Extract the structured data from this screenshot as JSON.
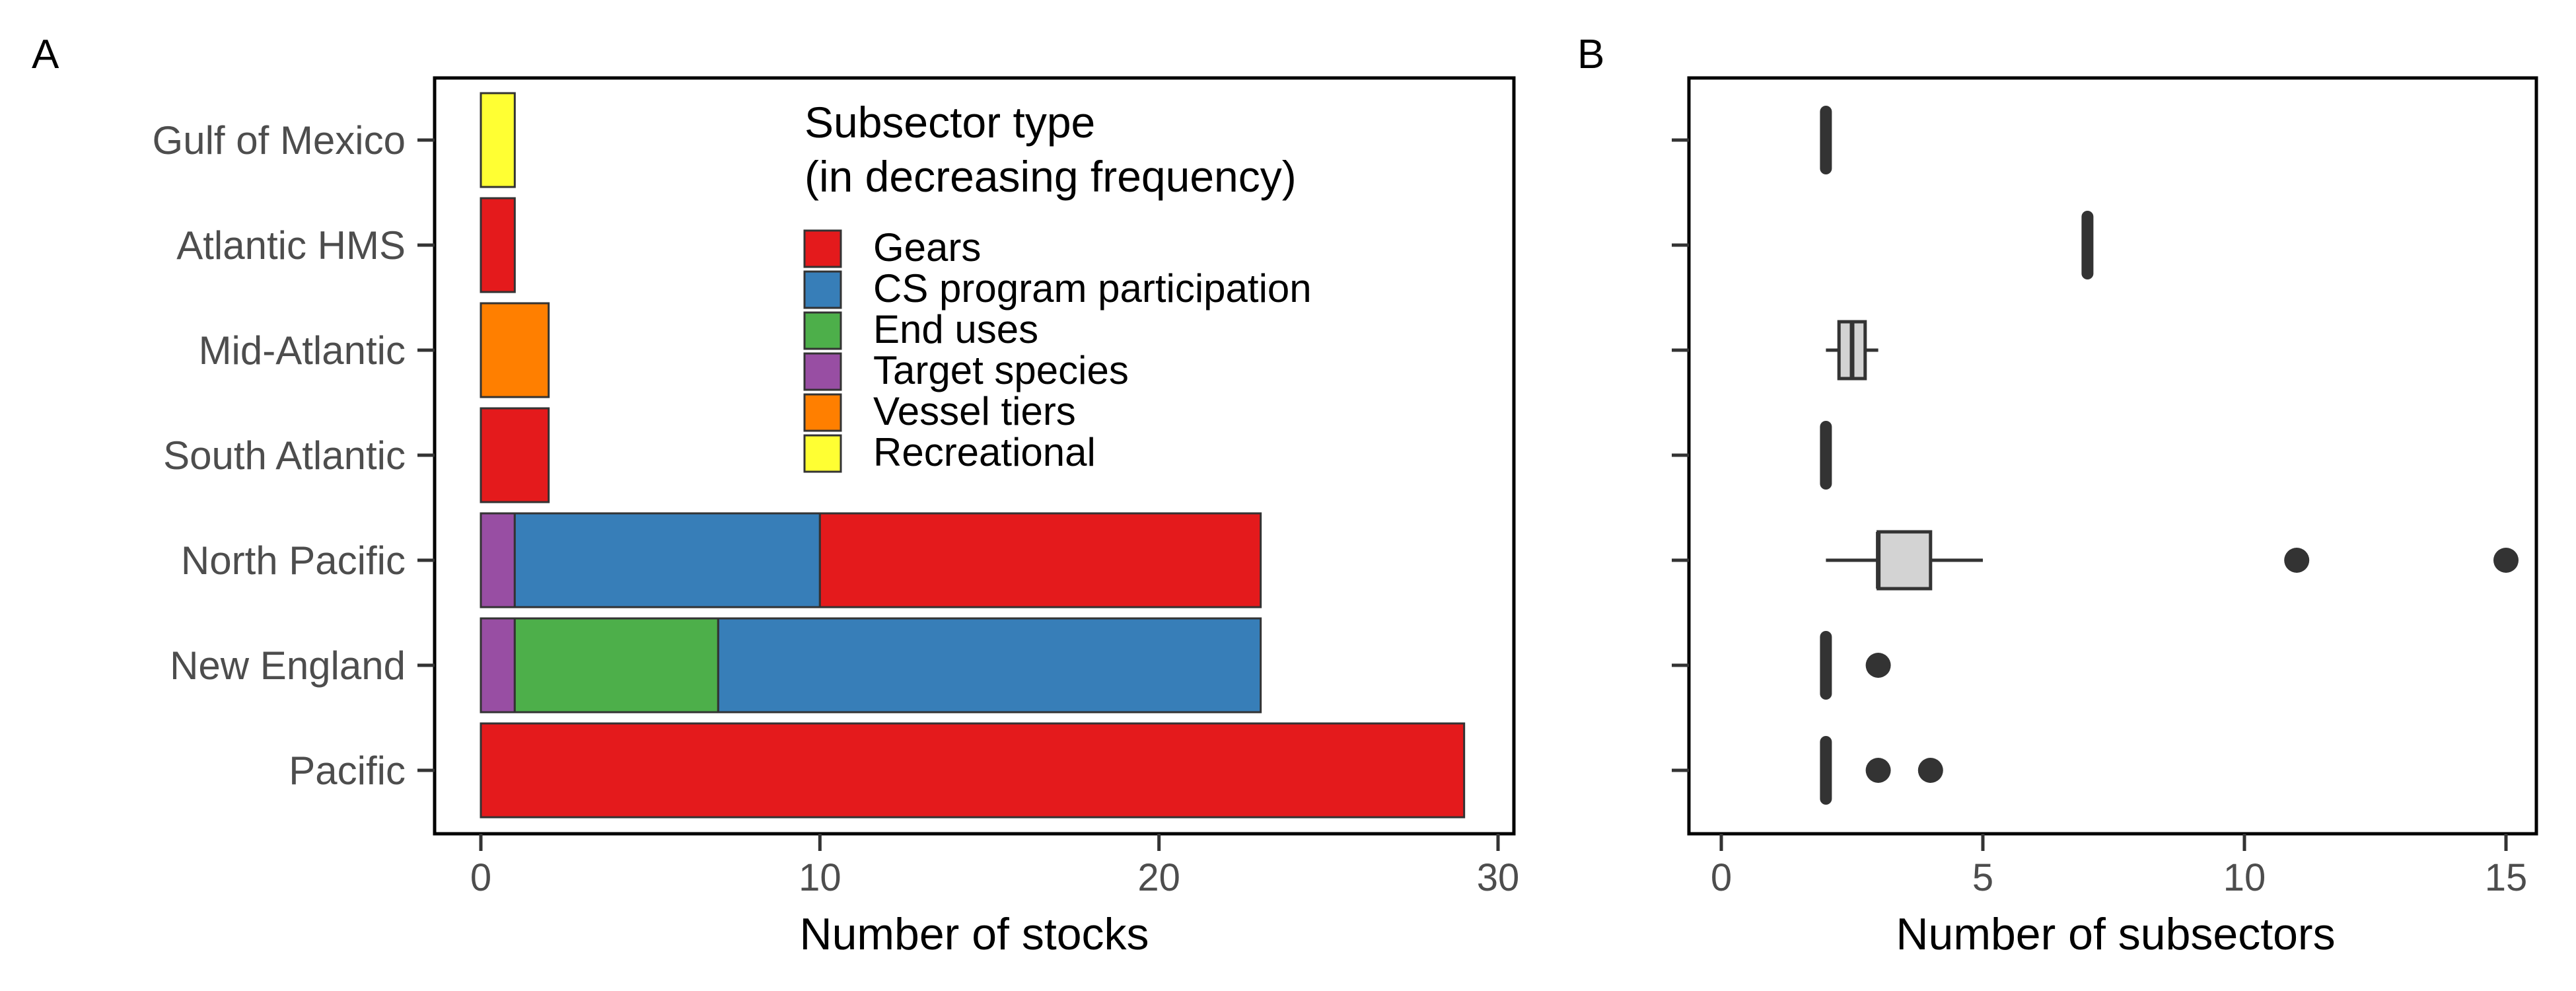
{
  "chart_data": [
    {
      "type": "bar",
      "stacked": true,
      "orientation": "horizontal",
      "panel_label": "A",
      "xlabel": "Number of stocks",
      "ylabel": "",
      "xlim": [
        0,
        30
      ],
      "xticks": [
        0,
        10,
        20,
        30
      ],
      "categories": [
        "Gulf of Mexico",
        "Atlantic HMS",
        "Mid-Atlantic",
        "South Atlantic",
        "North Pacific",
        "New England",
        "Pacific"
      ],
      "legend": {
        "title_line1": "Subsector type",
        "title_line2": "(in decreasing frequency)",
        "placement": "top-right"
      },
      "series": [
        {
          "name": "Gears",
          "color": "#E41A1C",
          "values": [
            0,
            1,
            0,
            2,
            13,
            0,
            29
          ]
        },
        {
          "name": "CS program participation",
          "color": "#377EB8",
          "values": [
            0,
            0,
            0,
            0,
            9,
            16,
            0
          ]
        },
        {
          "name": "End uses",
          "color": "#4DAF4A",
          "values": [
            0,
            0,
            0,
            0,
            0,
            6,
            0
          ]
        },
        {
          "name": "Target species",
          "color": "#984EA3",
          "values": [
            0,
            0,
            0,
            0,
            1,
            1,
            0
          ]
        },
        {
          "name": "Vessel tiers",
          "color": "#FF7F00",
          "values": [
            0,
            0,
            2,
            0,
            0,
            0,
            0
          ]
        },
        {
          "name": "Recreational",
          "color": "#FFFF33",
          "values": [
            1,
            0,
            0,
            0,
            0,
            0,
            0
          ]
        }
      ],
      "stack_order": [
        "Target species",
        "End uses",
        "CS program participation",
        "Gears",
        "Vessel tiers",
        "Recreational"
      ],
      "grid": false
    },
    {
      "type": "boxplot",
      "orientation": "horizontal",
      "panel_label": "B",
      "xlabel": "Number of subsectors",
      "xlim": [
        0,
        15
      ],
      "xticks": [
        0,
        5,
        10,
        15
      ],
      "categories": [
        "Gulf of Mexico",
        "Atlantic HMS",
        "Mid-Atlantic",
        "South Atlantic",
        "North Pacific",
        "New England",
        "Pacific"
      ],
      "boxes": [
        {
          "category": "Gulf of Mexico",
          "min": 2,
          "q1": 2,
          "median": 2,
          "q3": 2,
          "max": 2,
          "outliers": []
        },
        {
          "category": "Atlantic HMS",
          "min": 7,
          "q1": 7,
          "median": 7,
          "q3": 7,
          "max": 7,
          "outliers": []
        },
        {
          "category": "Mid-Atlantic",
          "min": 2,
          "q1": 2.25,
          "median": 2.5,
          "q3": 2.75,
          "max": 3,
          "outliers": []
        },
        {
          "category": "South Atlantic",
          "min": 2,
          "q1": 2,
          "median": 2,
          "q3": 2,
          "max": 2,
          "outliers": []
        },
        {
          "category": "North Pacific",
          "min": 2,
          "q1": 3,
          "median": 3,
          "q3": 4,
          "max": 5,
          "outliers": [
            11,
            15
          ]
        },
        {
          "category": "New England",
          "min": 2,
          "q1": 2,
          "median": 2,
          "q3": 2,
          "max": 2,
          "outliers": [
            3
          ]
        },
        {
          "category": "Pacific",
          "min": 2,
          "q1": 2,
          "median": 2,
          "q3": 2,
          "max": 2,
          "outliers": [
            3,
            4
          ]
        }
      ],
      "box_fill": "#D3D3D3",
      "line_color": "#333333",
      "grid": false
    }
  ]
}
